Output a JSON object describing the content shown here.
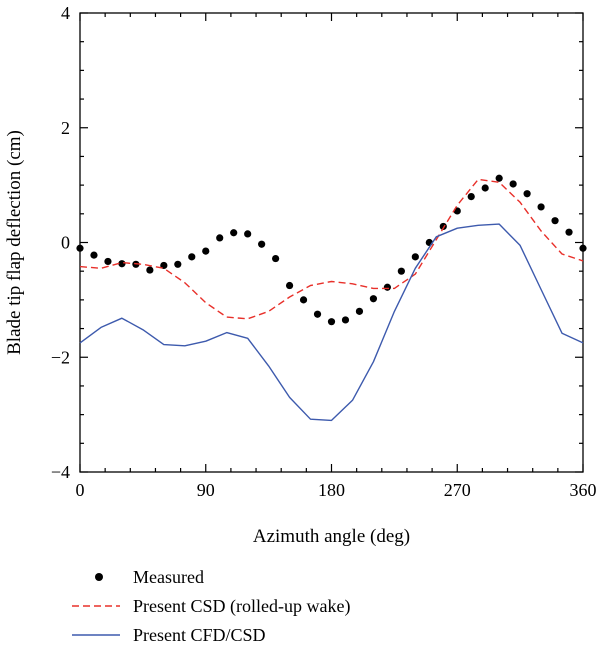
{
  "chart_data": {
    "type": "line",
    "title": "",
    "xlabel": "Azimuth angle (deg)",
    "ylabel": "Blade tip flap deflection (cm)",
    "xlim": [
      0,
      360
    ],
    "ylim": [
      -4,
      4
    ],
    "xticks": [
      0,
      90,
      180,
      270,
      360
    ],
    "yticks": [
      -4,
      -2,
      0,
      2,
      4
    ],
    "grid": false,
    "legend_position": "bottom",
    "series": [
      {
        "name": "Measured",
        "style": "markers",
        "color": "#000000",
        "x": [
          0,
          10,
          20,
          30,
          40,
          50,
          60,
          70,
          80,
          90,
          100,
          110,
          120,
          130,
          140,
          150,
          160,
          170,
          180,
          190,
          200,
          210,
          220,
          230,
          240,
          250,
          260,
          270,
          280,
          290,
          300,
          310,
          320,
          330,
          340,
          350,
          360
        ],
        "y": [
          -0.1,
          -0.22,
          -0.33,
          -0.37,
          -0.38,
          -0.48,
          -0.4,
          -0.38,
          -0.25,
          -0.15,
          0.08,
          0.17,
          0.15,
          -0.03,
          -0.28,
          -0.75,
          -1.0,
          -1.25,
          -1.38,
          -1.35,
          -1.2,
          -0.98,
          -0.78,
          -0.5,
          -0.25,
          0.0,
          0.28,
          0.55,
          0.8,
          0.95,
          1.12,
          1.02,
          0.85,
          0.62,
          0.38,
          0.18,
          -0.1
        ]
      },
      {
        "name": "Present CSD (rolled-up wake)",
        "style": "dashed",
        "color": "#e8302a",
        "x": [
          0,
          15,
          30,
          45,
          60,
          75,
          90,
          105,
          120,
          135,
          150,
          165,
          180,
          195,
          210,
          225,
          240,
          255,
          270,
          285,
          300,
          315,
          330,
          345,
          360
        ],
        "y": [
          -0.42,
          -0.45,
          -0.35,
          -0.38,
          -0.45,
          -0.7,
          -1.05,
          -1.3,
          -1.33,
          -1.2,
          -0.95,
          -0.75,
          -0.68,
          -0.72,
          -0.8,
          -0.8,
          -0.55,
          0.05,
          0.65,
          1.1,
          1.05,
          0.7,
          0.2,
          -0.2,
          -0.32
        ]
      },
      {
        "name": "Present CFD/CSD",
        "style": "solid",
        "color": "#3d5aad",
        "x": [
          0,
          15,
          30,
          45,
          60,
          75,
          90,
          105,
          120,
          135,
          150,
          165,
          180,
          195,
          210,
          225,
          240,
          255,
          270,
          285,
          300,
          315,
          330,
          345,
          360
        ],
        "y": [
          -1.75,
          -1.48,
          -1.32,
          -1.52,
          -1.78,
          -1.8,
          -1.72,
          -1.57,
          -1.67,
          -2.15,
          -2.7,
          -3.08,
          -3.1,
          -2.75,
          -2.08,
          -1.2,
          -0.45,
          0.1,
          0.25,
          0.3,
          0.32,
          -0.05,
          -0.82,
          -1.58,
          -1.75
        ]
      }
    ]
  }
}
